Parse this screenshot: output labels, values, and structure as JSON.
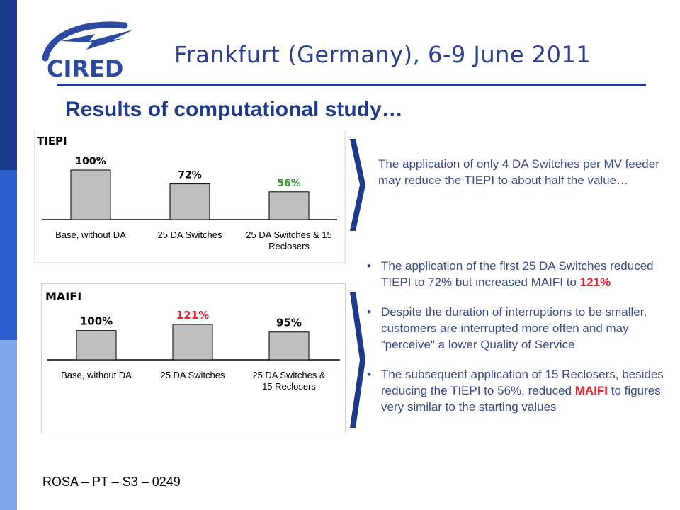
{
  "header": {
    "logo_text": "CIRED",
    "conference": "Frankfurt (Germany), 6-9 June 2011"
  },
  "slide_title": "Results of computational study…",
  "colors": {
    "brand_blue": "#1f3a8a",
    "side_dark": "#1c3a8c",
    "side_mid": "#2f5fcf",
    "side_light": "#7fa6e8",
    "bar_fill": "#bfbfbf",
    "highlight_red": "#e8202a",
    "highlight_green": "#2e9a2e"
  },
  "chart_data": [
    {
      "type": "bar",
      "title": "TIEPI",
      "categories": [
        "Base, without DA",
        "25 DA Switches",
        "25 DA Switches & 15 Reclosers"
      ],
      "values": [
        100,
        72,
        56
      ],
      "data_labels": [
        "100%",
        "72%",
        "56%"
      ],
      "label_colors": [
        "#000000",
        "#000000",
        "#2e9a2e"
      ]
    },
    {
      "type": "bar",
      "title": "MAIFI",
      "categories": [
        "Base, without  DA",
        "25 DA Switches",
        "25 DA Switches & 15 Reclosers"
      ],
      "values": [
        100,
        121,
        95
      ],
      "data_labels": [
        "100%",
        "121%",
        "95%"
      ],
      "label_colors": [
        "#000000",
        "#e8202a",
        "#000000"
      ]
    }
  ],
  "note_tiepi": "The application of only 4 DA Switches per MV feeder may reduce the TIEPI to about half the value…",
  "bullets": {
    "b1_text": "The application of the first 25 DA Switches reduced TIEPI to 72% but increased MAIFI to ",
    "b1_highlight": "121%",
    "b2_text": "Despite the duration of interruptions to be smaller, customers are interrupted more often and may “perceive\" a lower Quality of Service",
    "b3_text_a": "The subsequent application of 15 Reclosers, besides reducing the TIEPI to 56%, reduced ",
    "b3_highlight": "MAIFI",
    "b3_text_b": " to figures very similar to the starting values",
    "marker": "•"
  },
  "footer": "ROSA – PT – S3 – 0249"
}
